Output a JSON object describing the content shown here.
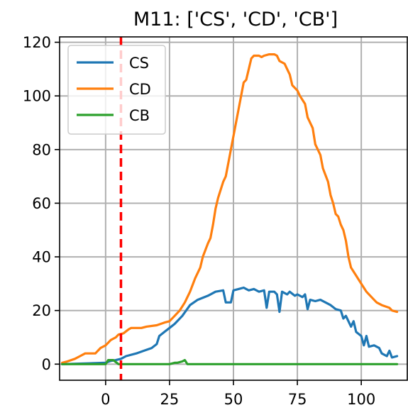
{
  "chart_data": {
    "type": "line",
    "title": "M11: ['CS', 'CD', 'CB']",
    "xlabel": "",
    "ylabel": "",
    "xlim": [
      -18,
      118
    ],
    "ylim": [
      -6,
      122
    ],
    "xticks": [
      0,
      25,
      50,
      75,
      100
    ],
    "yticks": [
      0,
      20,
      40,
      60,
      80,
      100,
      120
    ],
    "grid": true,
    "legend_position": "top-left",
    "vertical_marker": {
      "x": 6,
      "color": "#ff0000",
      "style": "dashed"
    },
    "series": [
      {
        "name": "CS",
        "color": "#1f77b4",
        "points": [
          [
            -17,
            0
          ],
          [
            0,
            0.5
          ],
          [
            2,
            1.2
          ],
          [
            4,
            1.5
          ],
          [
            6,
            2
          ],
          [
            8,
            3
          ],
          [
            12,
            4
          ],
          [
            15,
            5
          ],
          [
            18,
            6
          ],
          [
            20,
            7.5
          ],
          [
            21,
            10.5
          ],
          [
            23,
            12
          ],
          [
            25,
            13.5
          ],
          [
            27,
            15
          ],
          [
            30,
            18
          ],
          [
            33,
            22
          ],
          [
            36,
            24
          ],
          [
            40,
            25.5
          ],
          [
            43,
            27
          ],
          [
            46,
            27.5
          ],
          [
            47,
            23
          ],
          [
            49,
            23
          ],
          [
            50,
            27.5
          ],
          [
            52,
            28
          ],
          [
            54,
            28.5
          ],
          [
            56,
            27.5
          ],
          [
            58,
            28
          ],
          [
            60,
            27
          ],
          [
            62,
            27.5
          ],
          [
            63,
            21
          ],
          [
            64,
            27
          ],
          [
            66,
            27
          ],
          [
            67,
            26
          ],
          [
            68,
            19.5
          ],
          [
            69,
            27
          ],
          [
            71,
            26
          ],
          [
            72,
            27
          ],
          [
            74,
            25.5
          ],
          [
            75,
            26
          ],
          [
            77,
            25
          ],
          [
            78,
            26
          ],
          [
            79,
            20.5
          ],
          [
            80,
            24
          ],
          [
            82,
            23.5
          ],
          [
            84,
            24
          ],
          [
            86,
            23
          ],
          [
            88,
            22
          ],
          [
            90,
            20.5
          ],
          [
            92,
            20
          ],
          [
            93,
            17
          ],
          [
            94,
            18
          ],
          [
            96,
            14
          ],
          [
            97,
            16
          ],
          [
            98,
            12
          ],
          [
            100,
            10.5
          ],
          [
            101,
            7
          ],
          [
            102,
            10.5
          ],
          [
            103,
            6.5
          ],
          [
            105,
            7
          ],
          [
            107,
            6
          ],
          [
            108,
            4
          ],
          [
            110,
            3
          ],
          [
            111,
            5
          ],
          [
            112,
            2.5
          ],
          [
            114,
            3
          ]
        ]
      },
      {
        "name": "CD",
        "color": "#ff7f0e",
        "points": [
          [
            -17,
            0.5
          ],
          [
            -15,
            1
          ],
          [
            -12,
            2
          ],
          [
            -10,
            3
          ],
          [
            -8,
            4
          ],
          [
            -4,
            4
          ],
          [
            -3,
            5
          ],
          [
            -2,
            6
          ],
          [
            0,
            7
          ],
          [
            1,
            8
          ],
          [
            2,
            9
          ],
          [
            4,
            10
          ],
          [
            5,
            11
          ],
          [
            7,
            11.5
          ],
          [
            9,
            13
          ],
          [
            10,
            13.5
          ],
          [
            14,
            13.5
          ],
          [
            16,
            14
          ],
          [
            20,
            14.5
          ],
          [
            23,
            15.5
          ],
          [
            25,
            16
          ],
          [
            27,
            18
          ],
          [
            29,
            20
          ],
          [
            31,
            23
          ],
          [
            33,
            27
          ],
          [
            35,
            32
          ],
          [
            37,
            36
          ],
          [
            38,
            40
          ],
          [
            40,
            45
          ],
          [
            41,
            47
          ],
          [
            42,
            52
          ],
          [
            43,
            58
          ],
          [
            44,
            62
          ],
          [
            45,
            65
          ],
          [
            46,
            68
          ],
          [
            47,
            70
          ],
          [
            48,
            75
          ],
          [
            49,
            80
          ],
          [
            50,
            85
          ],
          [
            51,
            90
          ],
          [
            52,
            95
          ],
          [
            53,
            100
          ],
          [
            54,
            105
          ],
          [
            55,
            106
          ],
          [
            56,
            110
          ],
          [
            57,
            114
          ],
          [
            58,
            115
          ],
          [
            60,
            115
          ],
          [
            61,
            114.5
          ],
          [
            62,
            115
          ],
          [
            64,
            115.5
          ],
          [
            66,
            115.5
          ],
          [
            67,
            115
          ],
          [
            68,
            113
          ],
          [
            70,
            112
          ],
          [
            71,
            110
          ],
          [
            72,
            108
          ],
          [
            73,
            104
          ],
          [
            75,
            102
          ],
          [
            76,
            100
          ],
          [
            78,
            97
          ],
          [
            79,
            92
          ],
          [
            81,
            88
          ],
          [
            82,
            82
          ],
          [
            84,
            78
          ],
          [
            85,
            73
          ],
          [
            87,
            68
          ],
          [
            88,
            63
          ],
          [
            89,
            60
          ],
          [
            90,
            56
          ],
          [
            91,
            55
          ],
          [
            92,
            52
          ],
          [
            93,
            50
          ],
          [
            94,
            46
          ],
          [
            95,
            40
          ],
          [
            96,
            36
          ],
          [
            98,
            33
          ],
          [
            100,
            30
          ],
          [
            102,
            27
          ],
          [
            104,
            25
          ],
          [
            106,
            23
          ],
          [
            108,
            22
          ],
          [
            111,
            21
          ],
          [
            112,
            20
          ],
          [
            114,
            19.5
          ]
        ]
      },
      {
        "name": "CB",
        "color": "#2ca02c",
        "points": [
          [
            -17,
            0
          ],
          [
            0,
            0
          ],
          [
            1,
            1.5
          ],
          [
            3,
            1.5
          ],
          [
            5,
            0
          ],
          [
            25,
            0
          ],
          [
            27,
            0.5
          ],
          [
            28,
            0.5
          ],
          [
            30,
            1
          ],
          [
            31,
            1.5
          ],
          [
            32,
            0
          ],
          [
            114,
            0
          ]
        ]
      }
    ]
  }
}
